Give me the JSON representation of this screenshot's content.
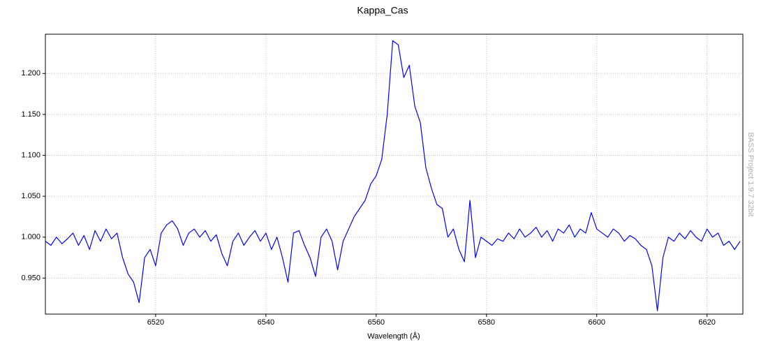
{
  "chart_data": {
    "type": "line",
    "title": "Kappa_Cas",
    "x_label": "Wavelength (Å)",
    "annotation": "BASS Project 1.9.7 32bit",
    "color": "#0000ff",
    "grid": true,
    "xlim": [
      6500,
      6626.5
    ],
    "xticks": [
      6520,
      6540,
      6560,
      6580,
      6600,
      6620
    ],
    "ylim": [
      0.906,
      1.248
    ],
    "yticks": [
      {
        "value": 0.95,
        "label": "0.950"
      },
      {
        "value": 1.0,
        "label": "1.000"
      },
      {
        "value": 1.05,
        "label": "1.050"
      },
      {
        "value": 1.1,
        "label": "1.100"
      },
      {
        "value": 1.15,
        "label": "1.150"
      },
      {
        "value": 1.2,
        "label": "1.200"
      }
    ],
    "x": [
      6500,
      6501,
      6502,
      6503,
      6504,
      6505,
      6506,
      6507,
      6508,
      6509,
      6510,
      6511,
      6512,
      6513,
      6514,
      6515,
      6516,
      6517,
      6518,
      6519,
      6520,
      6521,
      6522,
      6523,
      6524,
      6525,
      6526,
      6527,
      6528,
      6529,
      6530,
      6531,
      6532,
      6533,
      6534,
      6535,
      6536,
      6537,
      6538,
      6539,
      6540,
      6541,
      6542,
      6543,
      6544,
      6545,
      6546,
      6547,
      6548,
      6549,
      6550,
      6551,
      6552,
      6553,
      6554,
      6555,
      6556,
      6557,
      6558,
      6559,
      6560,
      6561,
      6562,
      6563,
      6564,
      6565,
      6566,
      6567,
      6568,
      6569,
      6570,
      6571,
      6572,
      6573,
      6574,
      6575,
      6576,
      6577,
      6578,
      6579,
      6580,
      6581,
      6582,
      6583,
      6584,
      6585,
      6586,
      6587,
      6588,
      6589,
      6590,
      6591,
      6592,
      6593,
      6594,
      6595,
      6596,
      6597,
      6598,
      6599,
      6600,
      6601,
      6602,
      6603,
      6604,
      6605,
      6606,
      6607,
      6608,
      6609,
      6610,
      6611,
      6612,
      6613,
      6614,
      6615,
      6616,
      6617,
      6618,
      6619,
      6620,
      6621,
      6622,
      6623,
      6624,
      6625,
      6626
    ],
    "values": [
      0.995,
      0.99,
      1.0,
      0.992,
      0.998,
      1.005,
      0.99,
      1.002,
      0.985,
      1.008,
      0.995,
      1.01,
      0.998,
      1.005,
      0.975,
      0.955,
      0.945,
      0.92,
      0.975,
      0.985,
      0.965,
      1.005,
      1.015,
      1.02,
      1.01,
      0.99,
      1.005,
      1.01,
      1.0,
      1.008,
      0.995,
      1.003,
      0.98,
      0.965,
      0.995,
      1.005,
      0.99,
      1.0,
      1.008,
      0.995,
      1.005,
      0.985,
      1.0,
      0.975,
      0.945,
      1.005,
      1.008,
      0.99,
      0.975,
      0.952,
      1.0,
      1.01,
      0.995,
      0.96,
      0.995,
      1.01,
      1.025,
      1.035,
      1.045,
      1.065,
      1.075,
      1.095,
      1.15,
      1.24,
      1.235,
      1.195,
      1.21,
      1.16,
      1.14,
      1.085,
      1.06,
      1.04,
      1.035,
      1.0,
      1.01,
      0.985,
      0.97,
      1.045,
      0.975,
      1.0,
      0.995,
      0.99,
      0.998,
      0.995,
      1.005,
      0.998,
      1.01,
      1.0,
      1.005,
      1.012,
      1.0,
      1.008,
      0.995,
      1.01,
      1.005,
      1.015,
      1.0,
      1.01,
      1.005,
      1.03,
      1.01,
      1.005,
      1.0,
      1.01,
      1.005,
      0.995,
      1.002,
      0.998,
      0.99,
      0.985,
      0.965,
      0.91,
      0.975,
      1.0,
      0.995,
      1.005,
      0.998,
      1.008,
      1.0,
      0.995,
      1.01,
      1.0,
      1.005,
      0.99,
      0.995,
      0.985,
      0.995
    ]
  }
}
